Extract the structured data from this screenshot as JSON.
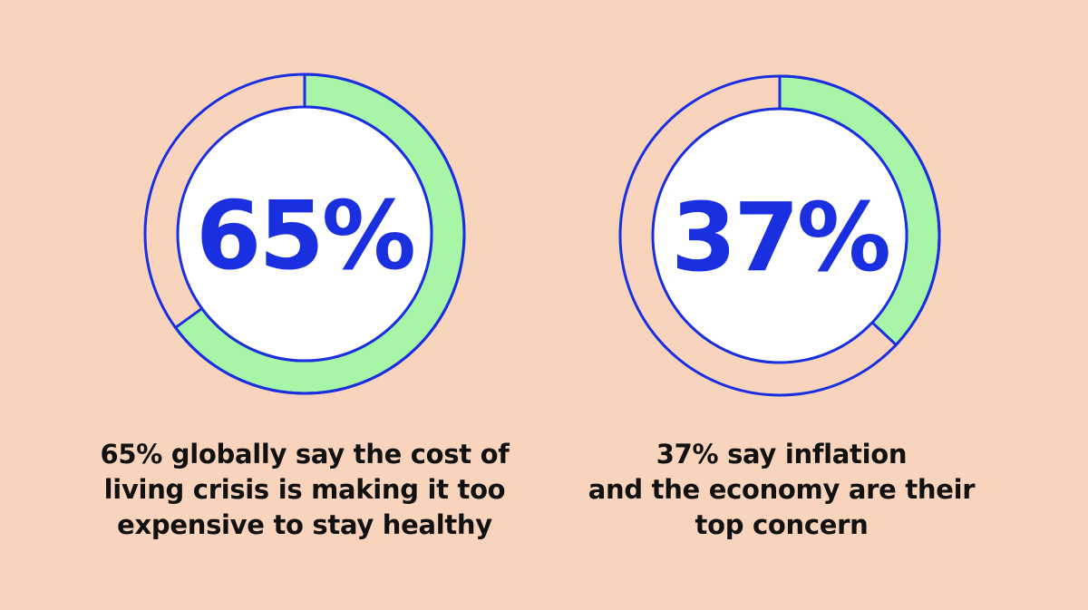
{
  "colors": {
    "background": "#f9d4bc",
    "ring_fill": "#a8f5a8",
    "ring_stroke": "#1a2fe0",
    "inner_fill": "#ffffff",
    "caption_text": "#111111"
  },
  "chart_data": [
    {
      "type": "donut",
      "value": 65,
      "max": 100,
      "center_label": "65%",
      "caption_lines": [
        "65% globally say the cost of",
        "living crisis is making it too",
        "expensive to stay healthy"
      ]
    },
    {
      "type": "donut",
      "value": 37,
      "max": 100,
      "center_label": "37%",
      "caption_lines": [
        "37% say inflation",
        "and the economy are their",
        "top concern"
      ]
    }
  ]
}
